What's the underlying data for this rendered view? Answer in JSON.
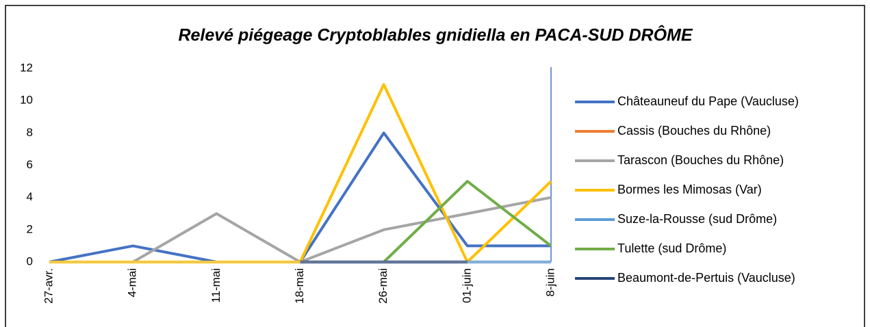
{
  "chart_data": {
    "type": "line",
    "title": "Relevé piégeage Cryptoblables gnidiella en PACA-SUD DRÔME",
    "categories": [
      "27-avr.",
      "4-mai",
      "11-mai",
      "18-mai",
      "26-mai",
      "01-juin",
      "8-juin"
    ],
    "series": [
      {
        "name": "Châteauneuf du Pape (Vaucluse)",
        "color": "#4472c4",
        "values": [
          0,
          1,
          0,
          0,
          8,
          1,
          1
        ]
      },
      {
        "name": "Cassis (Bouches du Rhône)",
        "color": "#ed7d31",
        "values": [
          0,
          0,
          0,
          0,
          0,
          0,
          0
        ]
      },
      {
        "name": "Tarascon (Bouches du Rhône)",
        "color": "#a5a5a5",
        "values": [
          0,
          0,
          3,
          0,
          2,
          3,
          4
        ]
      },
      {
        "name": "Bormes les Mimosas (Var)",
        "color": "#ffc000",
        "values": [
          0,
          0,
          0,
          0,
          11,
          0,
          5
        ]
      },
      {
        "name": "Suze-la-Rousse (sud Drôme)",
        "color": "#5b9bd5",
        "values": [
          null,
          null,
          null,
          null,
          null,
          0,
          0
        ]
      },
      {
        "name": "Tulette (sud Drôme)",
        "color": "#70ad47",
        "values": [
          null,
          null,
          null,
          null,
          0,
          5,
          1
        ]
      },
      {
        "name": "Beaumont-de-Pertuis (Vaucluse)",
        "color": "#264478",
        "values": [
          null,
          null,
          null,
          0,
          0,
          0,
          null
        ]
      }
    ],
    "ylim": [
      0,
      12
    ],
    "yticks": [
      0,
      2,
      4,
      6,
      8,
      10,
      12
    ],
    "grid": false,
    "legend": "right"
  }
}
